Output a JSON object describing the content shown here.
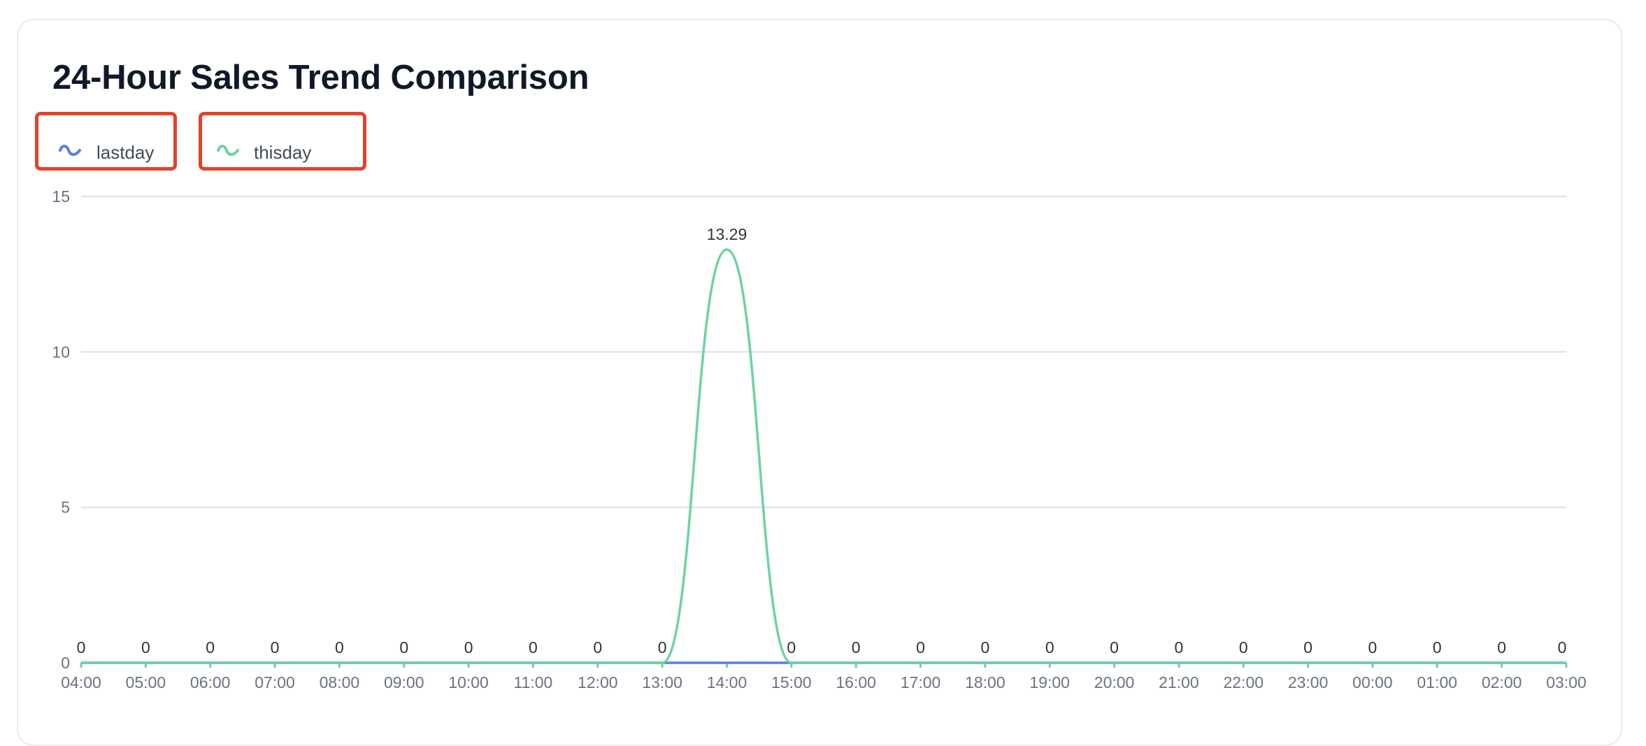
{
  "title": "24-Hour Sales Trend Comparison",
  "legend": [
    {
      "name": "lastday",
      "color": "#5b7be8"
    },
    {
      "name": "thisday",
      "color": "#6dd3a2"
    }
  ],
  "chart_data": {
    "type": "line",
    "title": "24-Hour Sales Trend Comparison",
    "smooth": true,
    "x": [
      "04:00",
      "05:00",
      "06:00",
      "07:00",
      "08:00",
      "09:00",
      "10:00",
      "11:00",
      "12:00",
      "13:00",
      "14:00",
      "15:00",
      "16:00",
      "17:00",
      "18:00",
      "19:00",
      "20:00",
      "21:00",
      "22:00",
      "23:00",
      "00:00",
      "01:00",
      "02:00",
      "03:00"
    ],
    "series": [
      {
        "name": "lastday",
        "color": "#5b7be8",
        "values": [
          0,
          0,
          0,
          0,
          0,
          0,
          0,
          0,
          0,
          0,
          0,
          0,
          0,
          0,
          0,
          0,
          0,
          0,
          0,
          0,
          0,
          0,
          0,
          0
        ]
      },
      {
        "name": "thisday",
        "color": "#6dd3a2",
        "values": [
          0,
          0,
          0,
          0,
          0,
          0,
          0,
          0,
          0,
          0,
          13.29,
          0,
          0,
          0,
          0,
          0,
          0,
          0,
          0,
          0,
          0,
          0,
          0,
          0
        ],
        "data_labels": [
          "0",
          "0",
          "0",
          "0",
          "0",
          "0",
          "0",
          "0",
          "0",
          "0",
          "13.29",
          "0",
          "0",
          "0",
          "0",
          "0",
          "0",
          "0",
          "0",
          "0",
          "0",
          "0",
          "0",
          "0"
        ]
      }
    ],
    "ylim": [
      0,
      15
    ],
    "yticks": [
      "0",
      "5",
      "10",
      "15"
    ],
    "grid": true,
    "legend_position": "top-left",
    "xlabel": "",
    "ylabel": ""
  }
}
